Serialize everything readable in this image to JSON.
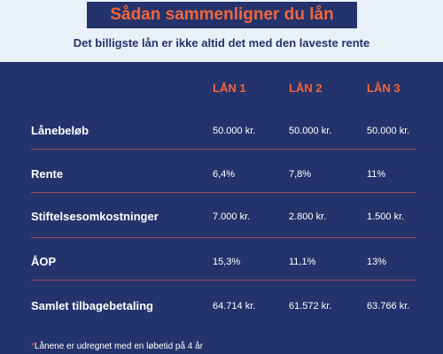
{
  "header": {
    "title": "Sådan sammenligner du lån",
    "subtitle": "Det billigste lån er ikke altid det med den laveste rente"
  },
  "table": {
    "columns": [
      "LÅN 1",
      "LÅN 2",
      "LÅN 3"
    ],
    "rows": [
      {
        "label": "Lånebeløb",
        "values": [
          "50.000 kr.",
          "50.000 kr.",
          "50.000 kr."
        ]
      },
      {
        "label": "Rente",
        "values": [
          "6,4%",
          "7,8%",
          "11%"
        ]
      },
      {
        "label": "Stiftelsesomkostninger",
        "values": [
          "7.000 kr.",
          "2.800 kr.",
          "1.500 kr."
        ]
      },
      {
        "label": "ÅOP",
        "values": [
          "15,3%",
          "11,1%",
          "13%"
        ]
      },
      {
        "label": "Samlet tilbagebetaling",
        "values": [
          "64.714 kr.",
          "61.572 kr.",
          "63.766 kr."
        ]
      }
    ]
  },
  "footnote": {
    "marker": "*",
    "text": "Lånene er udregnet med en løbetid på 4 år"
  },
  "colors": {
    "navy": "#24336b",
    "accent": "#f0653c",
    "background": "#e9f0f8",
    "divider": "#9a4a5c"
  }
}
